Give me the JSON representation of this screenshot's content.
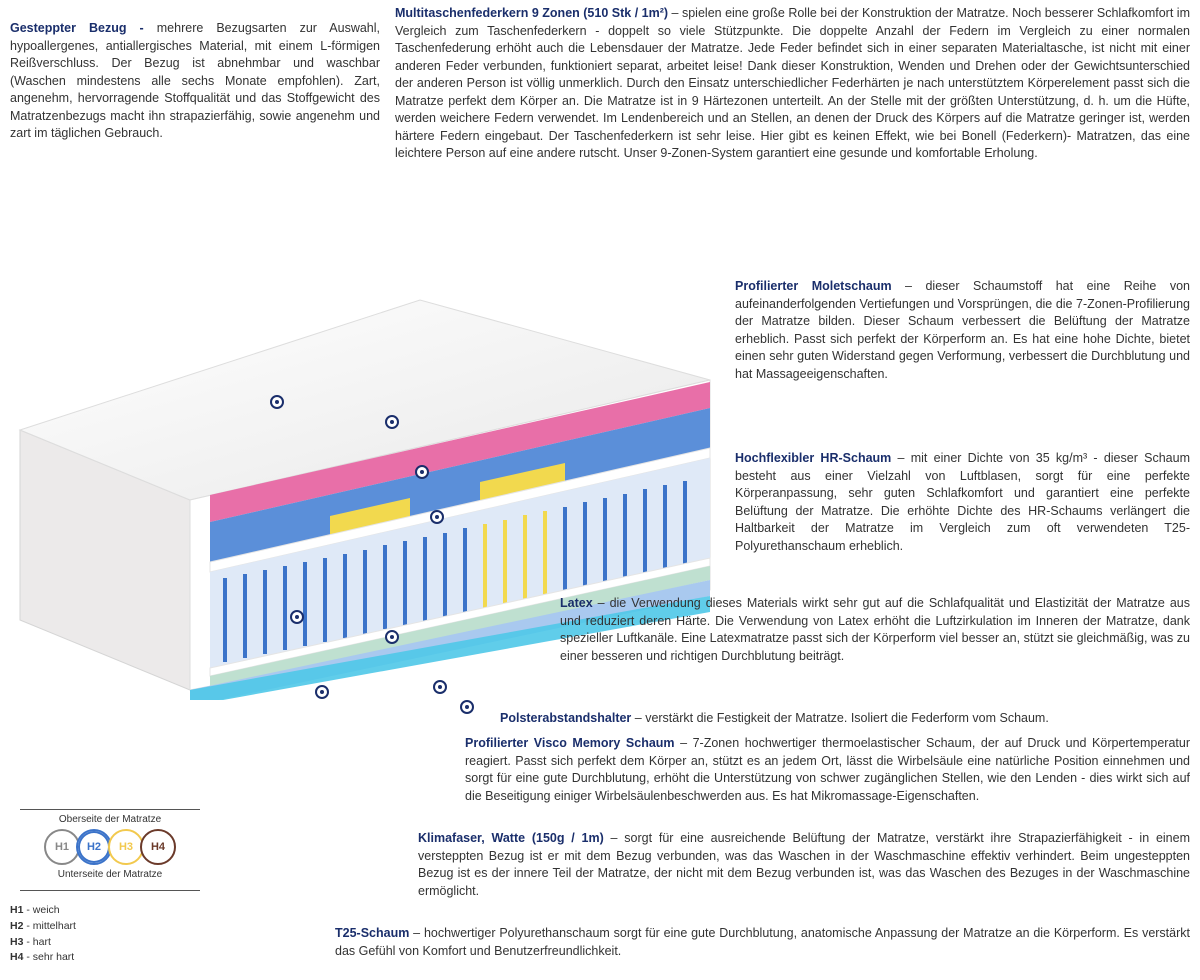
{
  "colors": {
    "title": "#1a2e6b",
    "text": "#333333",
    "dot_border": "#1a2e6b",
    "cover": "#f5f5f5",
    "pink": "#e86fa8",
    "blue_foam": "#5b8fd9",
    "yellow": "#f2d94e",
    "spring_blue": "#3b73c9",
    "latex_green": "#bfe0d0",
    "bottom_cyan": "#4fc8e8"
  },
  "cover": {
    "title": "Gesteppter Bezug - ",
    "body": "mehrere Bezugsarten zur Auswahl, hypoallergenes, antiallergisches Material, mit einem L-förmigen Reißverschluss. Der Bezug ist abnehmbar und waschbar (Waschen mindestens alle sechs Monate empfohlen). Zart, angenehm, hervorragende Stoffqualität und das Stoffgewicht des Matratzenbezugs macht ihn strapazierfähig, sowie angenehm und zart im täglichen Gebrauch."
  },
  "spring": {
    "title": "Multitaschenfederkern 9 Zonen (510 Stk / 1m²)",
    "body": " – spielen eine große Rolle bei der Konstruktion der Matratze. Noch besserer Schlafkomfort im Vergleich zum Taschenfederkern - doppelt so viele Stützpunkte. Die doppelte Anzahl der Federn im Vergleich zu einer normalen Taschenfederung erhöht auch die Lebensdauer der Matratze. Jede Feder befindet sich in einer separaten Materialtasche, ist nicht mit einer anderen Feder verbunden, funktioniert separat, arbeitet leise! Dank dieser Konstruktion, Wenden und Drehen oder der Gewichtsunterschied der anderen Person ist völlig unmerklich. Durch den Einsatz unterschiedlicher Federhärten je nach unterstütztem Körperelement passt sich die Matratze perfekt dem Körper an. Die Matratze ist in 9 Härtezonen unterteilt. An der Stelle mit der größten Unterstützung, d. h. um die Hüfte, werden weichere Federn verwendet. Im Lendenbereich und an Stellen, an denen der Druck des Körpers auf die Matratze geringer ist, werden härtere Federn eingebaut. Der Taschenfederkern ist sehr leise. Hier gibt es keinen Effekt, wie bei Bonell (Federkern)- Matratzen, das eine leichtere Person auf eine andere rutscht. Unser 9-Zonen-System garantiert eine gesunde und komfortable Erholung."
  },
  "molet": {
    "title": "Profilierter Moletschaum",
    "body": " – dieser Schaumstoff hat eine Reihe von aufeinanderfolgenden Vertiefungen und Vorsprüngen, die die 7-Zonen-Profilierung der Matratze bilden. Dieser Schaum verbessert die Belüftung der Matratze erheblich. Passt sich perfekt der Körperform an. Es hat eine hohe Dichte, bietet einen sehr guten Widerstand gegen Verformung, verbessert die Durchblutung und hat Massageeigenschaften."
  },
  "hr": {
    "title": "Hochflexibler HR-Schaum",
    "body": " – mit einer Dichte von 35 kg/m³ - dieser Schaum besteht aus einer Vielzahl von Luftblasen, sorgt für eine perfekte Körperanpassung, sehr guten Schlafkomfort und garantiert eine perfekte Belüftung der Matratze. Die erhöhte Dichte des HR-Schaums verlängert die Haltbarkeit der Matratze im Vergleich zum oft verwendeten T25-Polyurethanschaum erheblich."
  },
  "latex": {
    "title": "Latex",
    "body": " – die Verwendung dieses Materials wirkt sehr gut auf die Schlafqualität und Elastizität der Matratze aus und reduziert deren Härte. Die Verwendung von Latex erhöht die Luftzirkulation im Inneren der Matratze, dank spezieller Luftkanäle. Eine Latexmatratze passt sich der Körperform viel besser an, stützt sie gleichmäßig, was zu einer besseren und richtigen Durchblutung beiträgt."
  },
  "spacer": {
    "title": "Polsterabstandshalter",
    "body": " – verstärkt die Festigkeit der Matratze. Isoliert die Federform vom Schaum."
  },
  "visco": {
    "title": "Profilierter Visco Memory Schaum",
    "body": " – 7-Zonen hochwertiger thermoelastischer Schaum, der auf Druck und Körpertemperatur reagiert. Passt sich perfekt dem Körper an, stützt es an jedem Ort, lässt die Wirbelsäule eine natürliche Position einnehmen und sorgt für eine gute Durchblutung, erhöht die Unterstützung von schwer zugänglichen Stellen, wie den Lenden - dies wirkt sich auf die Beseitigung einiger Wirbelsäulenbeschwerden aus. Es hat Mikromassage-Eigenschaften."
  },
  "klima": {
    "title": "Klimafaser, Watte (150g / 1m)",
    "body": " – sorgt für eine ausreichende Belüftung der Matratze, verstärkt ihre Strapazierfähigkeit - in einem versteppten Bezug ist er mit dem Bezug verbunden, was das Waschen in der Waschmaschine effektiv verhindert. Beim ungesteppten Bezug ist es der innere Teil der Matratze, der nicht mit dem Bezug verbunden ist, was das Waschen des Bezuges in der Waschmaschine ermöglicht."
  },
  "t25": {
    "title": "T25-Schaum",
    "body": " – hochwertiger Polyurethanschaum sorgt für eine gute Durchblutung, anatomische Anpassung der Matratze an die Körperform. Es verstärkt das Gefühl von Komfort und Benutzerfreundlichkeit."
  },
  "legend": {
    "top_label": "Oberseite der Matratze",
    "bottom_label": "Unterseite der Matratze",
    "circles": [
      {
        "label": "H1",
        "color": "#888888"
      },
      {
        "label": "H2",
        "color": "#3b73c9"
      },
      {
        "label": "H3",
        "color": "#f2c94e"
      },
      {
        "label": "H4",
        "color": "#6b3a2a"
      }
    ],
    "items": [
      {
        "k": "H1",
        "v": " - weich"
      },
      {
        "k": "H2",
        "v": " - mittelhart"
      },
      {
        "k": "H3",
        "v": " - hart"
      },
      {
        "k": "H4",
        "v": " - sehr hart"
      }
    ]
  },
  "mattress": {
    "layers_top_to_bottom": [
      "cover-white",
      "pink-molet",
      "blue-yellow-profiled",
      "white-spacer",
      "pocket-springs-9zone",
      "white-spacer",
      "latex-green",
      "visco-blue",
      "bottom-cyan",
      "cover-white"
    ],
    "zones": 9
  }
}
